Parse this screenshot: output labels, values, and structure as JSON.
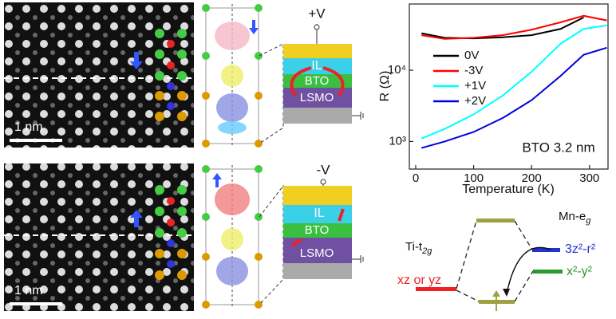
{
  "stem_top": {
    "scale_bar": "1 nm"
  },
  "stem_bottom": {
    "scale_bar": "1 nm"
  },
  "device_top": {
    "voltage": "+V",
    "layers": [
      "IL",
      "BTO",
      "LSMO"
    ]
  },
  "device_bottom": {
    "voltage": "-V",
    "layers": [
      "IL",
      "BTO",
      "LSMO"
    ]
  },
  "chart_data": {
    "type": "line",
    "x_label": "Temperature (K)",
    "y_label": "R (Ω)",
    "annotation": "BTO 3.2 nm",
    "x": [
      10,
      50,
      100,
      150,
      200,
      250,
      290,
      330
    ],
    "series": [
      {
        "name": "0V",
        "color": "#000000",
        "values": [
          33000,
          28500,
          28000,
          29000,
          31000,
          38000,
          55000,
          null
        ]
      },
      {
        "name": "-3V",
        "color": "#ff0000",
        "values": [
          31000,
          27500,
          28500,
          31000,
          37000,
          47000,
          58000,
          50000
        ]
      },
      {
        "name": "+1V",
        "color": "#00ffff",
        "values": [
          1100,
          1500,
          2400,
          4400,
          9500,
          23500,
          38000,
          42600
        ]
      },
      {
        "name": "+2V",
        "color": "#0000dd",
        "values": [
          810,
          1000,
          1360,
          2130,
          3800,
          8300,
          16500,
          20700
        ]
      }
    ],
    "xlim": [
      -11,
      332
    ],
    "xticks": [
      0,
      100,
      200,
      300
    ],
    "ylim": [
      410,
      85000
    ],
    "yticks": [
      {
        "value": 1000,
        "label": "10³"
      },
      {
        "value": 10000,
        "label": "10⁴"
      }
    ],
    "log_y": true,
    "legend": "upper-left"
  },
  "energy_diagram": {
    "mn": {
      "text": "Mn-e",
      "sub": "g"
    },
    "ti": {
      "text": "Ti-t",
      "sub": "2g"
    },
    "eg_upper": "3z²-r²",
    "eg_lower": "x²-y²",
    "t2g": "xz or yz"
  }
}
